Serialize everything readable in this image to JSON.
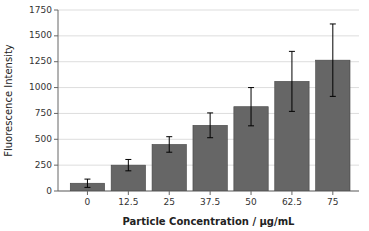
{
  "chart_data": {
    "type": "bar",
    "x": [
      0,
      12.5,
      25,
      37.5,
      50,
      62.5,
      75
    ],
    "values": [
      75,
      250,
      450,
      635,
      815,
      1060,
      1265
    ],
    "errors": [
      40,
      55,
      75,
      120,
      185,
      290,
      350
    ],
    "color": "#666666",
    "xlabel": "Particle Concentration / μg/mL",
    "ylabel": "Fluorescence Intensity",
    "xlim": [
      -9,
      83
    ],
    "xticks": [
      0,
      12.5,
      25,
      37.5,
      50,
      62.5,
      75
    ],
    "ylim": [
      0,
      1750
    ],
    "yticks": [
      0,
      250,
      500,
      750,
      1000,
      1250,
      1500,
      1750
    ],
    "grid": true
  }
}
